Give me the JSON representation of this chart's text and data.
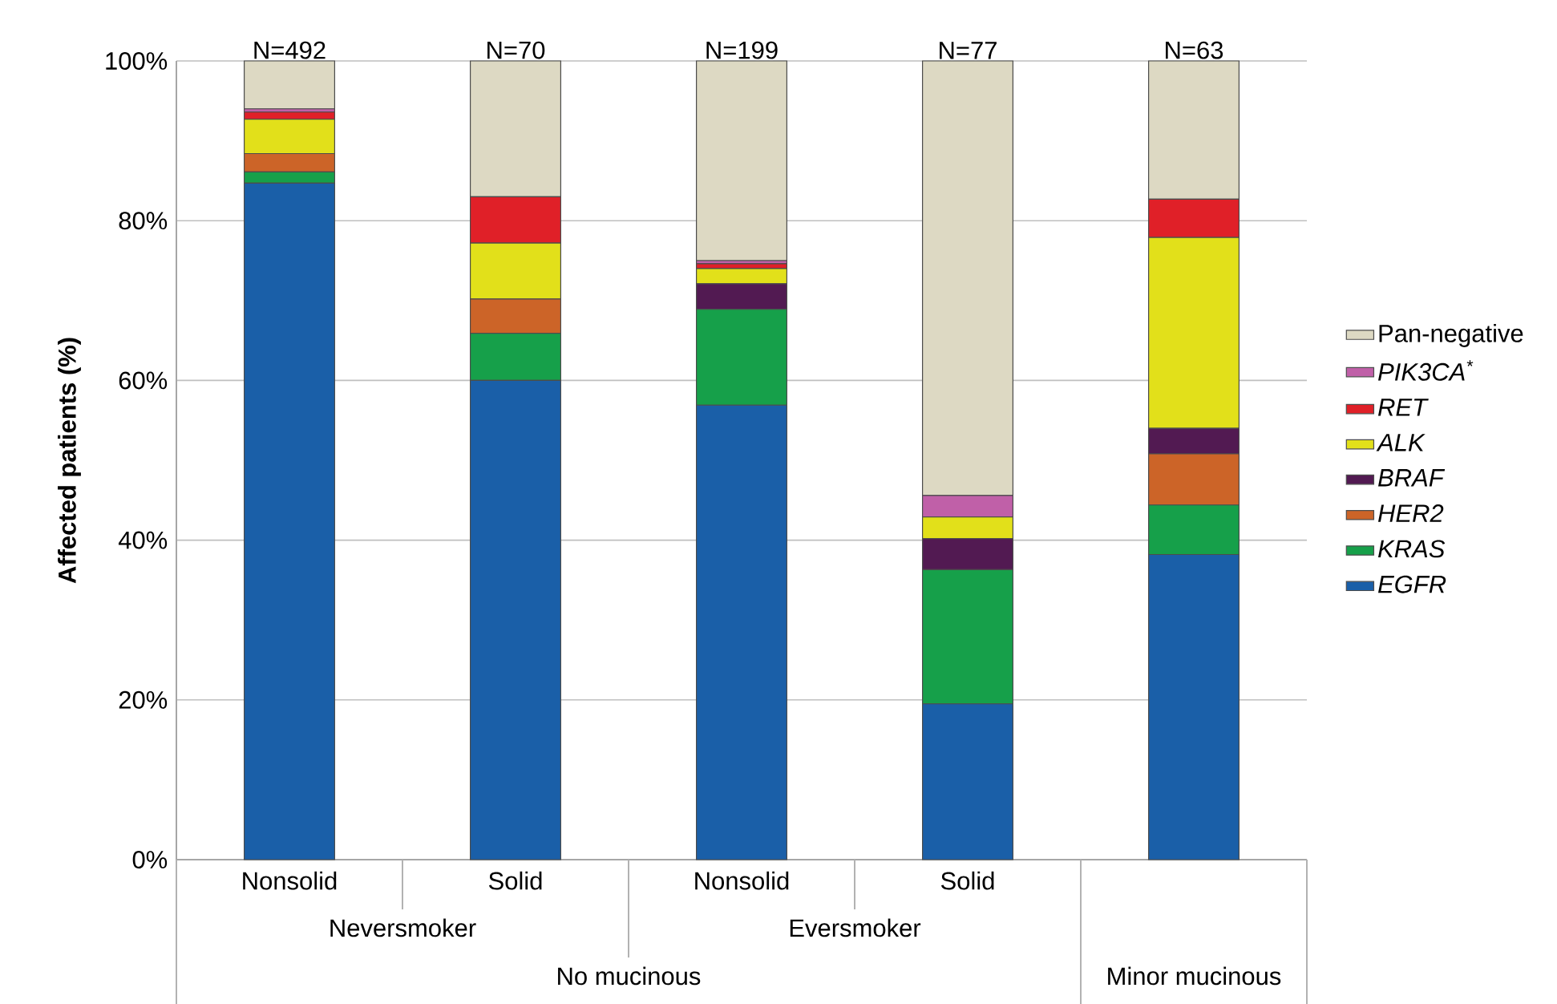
{
  "chart_data": {
    "type": "bar",
    "stacked": true,
    "ylabel": "Affected patients (%)",
    "categories": [
      "Nonsolid",
      "Solid",
      "Nonsolid",
      "Solid",
      null
    ],
    "series": [
      {
        "name": "EGFR",
        "color": "#1a5fa8",
        "values": [
          84.7,
          60.0,
          56.9,
          19.5,
          38.2
        ]
      },
      {
        "name": "KRAS",
        "color": "#16a04a",
        "values": [
          1.4,
          5.9,
          12.0,
          16.8,
          6.2
        ]
      },
      {
        "name": "HER2",
        "color": "#cc6428",
        "values": [
          2.3,
          4.3,
          0,
          0,
          6.4
        ]
      },
      {
        "name": "BRAF",
        "color": "#521a52",
        "values": [
          0,
          0,
          3.2,
          3.9,
          3.2
        ]
      },
      {
        "name": "ALK",
        "color": "#e2e01a",
        "values": [
          4.3,
          7.0,
          1.9,
          2.7,
          23.9
        ]
      },
      {
        "name": "RET",
        "color": "#e02028",
        "values": [
          0.9,
          5.8,
          0.6,
          0,
          4.8
        ]
      },
      {
        "name": "PIK3CA$^{*}$",
        "color": "#c060a8",
        "values": [
          0.4,
          0,
          0.4,
          2.7,
          0
        ]
      },
      {
        "name": "Pan-negative",
        "color": "#ddd9c3",
        "values": [
          6.0,
          17.0,
          25.0,
          54.4,
          17.3
        ]
      }
    ],
    "ylim": [
      0,
      100
    ],
    "yticks": [
      {
        "value": 0,
        "label": "0%"
      },
      {
        "value": 20,
        "label": "20%"
      },
      {
        "value": 40,
        "label": "40%"
      },
      {
        "value": 60,
        "label": "60%"
      },
      {
        "value": 80,
        "label": "80%"
      },
      {
        "value": 100,
        "label": "100%"
      }
    ],
    "grid": "y",
    "legend": "right",
    "annotations": [
      "N=492",
      "N=70",
      "N=199",
      "N=77",
      "N=63",
      "Neversmoker",
      "Eversmoker",
      "No mucinous",
      "Minor mucinous"
    ]
  }
}
